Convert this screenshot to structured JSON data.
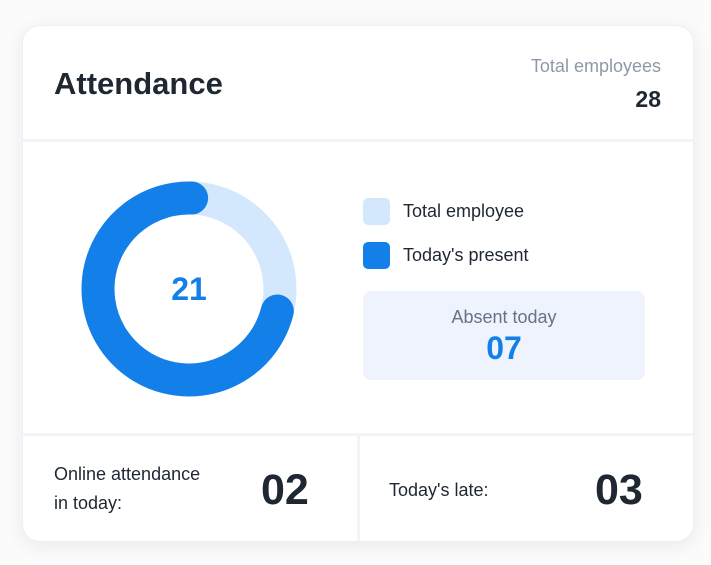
{
  "header": {
    "title": "Attendance",
    "total_label": "Total employees",
    "total_value": "28"
  },
  "chart_data": {
    "type": "pie",
    "style": "donut",
    "center_label": "21",
    "total": 28,
    "present": 21,
    "series": [
      {
        "name": "Total employee",
        "value": 28,
        "color": "#d3e8fd"
      },
      {
        "name": "Today's present",
        "value": 21,
        "color": "#1280e8"
      }
    ]
  },
  "legend": [
    {
      "label": "Total employee",
      "color": "#d3e8fd"
    },
    {
      "label": "Today's present",
      "color": "#1280e8"
    }
  ],
  "absent": {
    "label": "Absent today",
    "value": "07"
  },
  "online": {
    "label_line1": "Online attendance",
    "label_line2": "in today:",
    "value": "02"
  },
  "late": {
    "label": "Today's late:",
    "value": "03"
  }
}
